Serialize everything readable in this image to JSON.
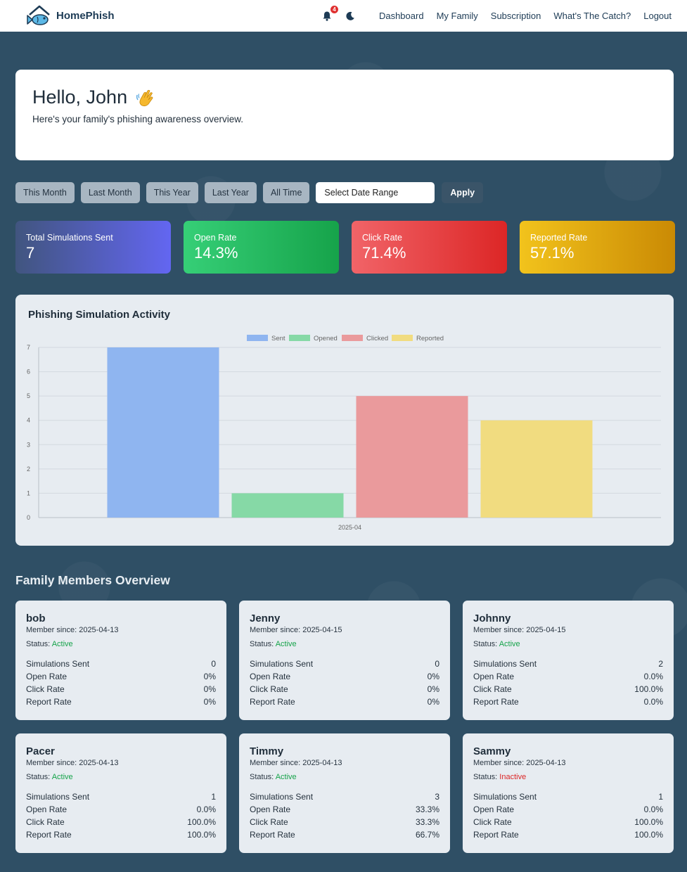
{
  "brand": {
    "name": "HomePhish"
  },
  "nav": {
    "notification_count": "4",
    "links": [
      "Dashboard",
      "My Family",
      "Subscription",
      "What's The Catch?",
      "Logout"
    ]
  },
  "hero": {
    "greeting": "Hello, John",
    "subtitle": "Here's your family's phishing awareness overview."
  },
  "filters": {
    "buttons": [
      "This Month",
      "Last Month",
      "This Year",
      "Last Year",
      "All Time"
    ],
    "date_placeholder": "Select Date Range",
    "apply_label": "Apply"
  },
  "stats": [
    {
      "label": "Total Simulations Sent",
      "value": "7"
    },
    {
      "label": "Open Rate",
      "value": "14.3%"
    },
    {
      "label": "Click Rate",
      "value": "71.4%"
    },
    {
      "label": "Reported Rate",
      "value": "57.1%"
    }
  ],
  "chart": {
    "title": "Phishing Simulation Activity"
  },
  "chart_data": {
    "type": "bar",
    "categories": [
      "2025-04"
    ],
    "series": [
      {
        "name": "Sent",
        "values": [
          7
        ],
        "color": "#8fb5f0"
      },
      {
        "name": "Opened",
        "values": [
          1
        ],
        "color": "#86d9a6"
      },
      {
        "name": "Clicked",
        "values": [
          5
        ],
        "color": "#ea9a9c"
      },
      {
        "name": "Reported",
        "values": [
          4
        ],
        "color": "#f1dc80"
      }
    ],
    "ylim": [
      0,
      7
    ],
    "yticks": [
      "0",
      "1",
      "2",
      "3",
      "4",
      "5",
      "6",
      "7"
    ],
    "legend": "top-center",
    "grid": true
  },
  "members_section": {
    "title": "Family Members Overview",
    "labels": {
      "member_since_prefix": "Member since: ",
      "status_prefix": "Status: ",
      "sent": "Simulations Sent",
      "open": "Open Rate",
      "click": "Click Rate",
      "report": "Report Rate"
    },
    "members": [
      {
        "name": "bob",
        "since": "2025-04-13",
        "status": "Active",
        "sent": "0",
        "open": "0%",
        "click": "0%",
        "report": "0%"
      },
      {
        "name": "Jenny",
        "since": "2025-04-15",
        "status": "Active",
        "sent": "0",
        "open": "0%",
        "click": "0%",
        "report": "0%"
      },
      {
        "name": "Johnny",
        "since": "2025-04-15",
        "status": "Active",
        "sent": "2",
        "open": "0.0%",
        "click": "100.0%",
        "report": "0.0%"
      },
      {
        "name": "Pacer",
        "since": "2025-04-13",
        "status": "Active",
        "sent": "1",
        "open": "0.0%",
        "click": "100.0%",
        "report": "100.0%"
      },
      {
        "name": "Timmy",
        "since": "2025-04-13",
        "status": "Active",
        "sent": "3",
        "open": "33.3%",
        "click": "33.3%",
        "report": "66.7%"
      },
      {
        "name": "Sammy",
        "since": "2025-04-13",
        "status": "Inactive",
        "sent": "1",
        "open": "0.0%",
        "click": "100.0%",
        "report": "100.0%"
      }
    ]
  }
}
